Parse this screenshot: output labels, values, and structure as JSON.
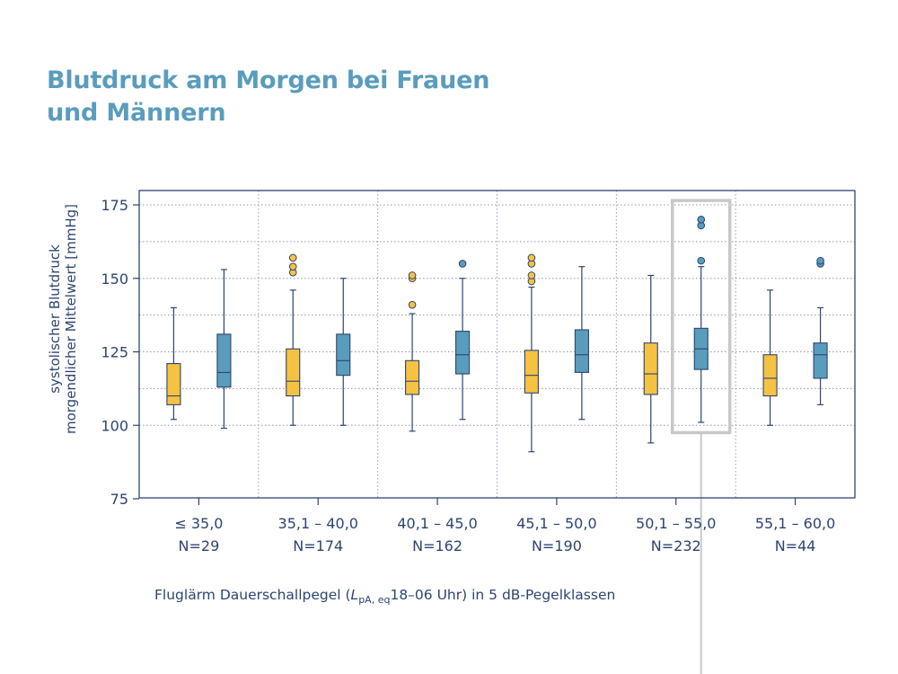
{
  "title": {
    "line1": "Blutdruck am Morgen bei Frauen",
    "line2": "und Männern"
  },
  "chart_data": {
    "type": "boxplot",
    "ylabel_line1": "systolischer Blutdruck",
    "ylabel_line2": "morgendlicher Mittelwert [mmHg]",
    "xlabel": {
      "before": "Fluglärm Dauerschallpegel (",
      "italic": "L",
      "sub": "pA, eq",
      "after": "18–06 Uhr) in 5 dB-Pegelklassen"
    },
    "ylim": [
      75,
      175
    ],
    "yticks": [
      75,
      100,
      125,
      150,
      175
    ],
    "grid": true,
    "colors": {
      "frauen": "#f5c242",
      "maenner": "#5a9cbc",
      "axis": "#2e4470",
      "highlight": "#c8c8c8"
    },
    "categories": [
      {
        "label": "≤ 35,0",
        "n": "N=29"
      },
      {
        "label": "35,1 – 40,0",
        "n": "N=174"
      },
      {
        "label": "40,1 – 45,0",
        "n": "N=162"
      },
      {
        "label": "45,1 – 50,0",
        "n": "N=190"
      },
      {
        "label": "50,1 – 55,0",
        "n": "N=232"
      },
      {
        "label": "55,1 – 60,0",
        "n": "N=44"
      }
    ],
    "highlight_category": 4,
    "series": [
      {
        "colorKey": "frauen",
        "boxes": [
          {
            "min": 102,
            "q1": 107,
            "median": 110,
            "q3": 121,
            "max": 140,
            "outliers": []
          },
          {
            "min": 100,
            "q1": 110,
            "median": 115,
            "q3": 126,
            "max": 146,
            "outliers": [
              152,
              154,
              157
            ]
          },
          {
            "min": 98,
            "q1": 110.5,
            "median": 115,
            "q3": 122,
            "max": 138,
            "outliers": [
              141,
              150,
              151
            ]
          },
          {
            "min": 91,
            "q1": 111,
            "median": 117,
            "q3": 125.5,
            "max": 147,
            "outliers": [
              149,
              151,
              155,
              157
            ]
          },
          {
            "min": 94,
            "q1": 110.5,
            "median": 117.5,
            "q3": 128,
            "max": 151,
            "outliers": []
          },
          {
            "min": 100,
            "q1": 110,
            "median": 116,
            "q3": 124,
            "max": 146,
            "outliers": []
          }
        ]
      },
      {
        "colorKey": "maenner",
        "boxes": [
          {
            "min": 99,
            "q1": 113,
            "median": 118,
            "q3": 131,
            "max": 153,
            "outliers": []
          },
          {
            "min": 100,
            "q1": 117,
            "median": 122,
            "q3": 131,
            "max": 150,
            "outliers": []
          },
          {
            "min": 102,
            "q1": 117.5,
            "median": 124,
            "q3": 132,
            "max": 150,
            "outliers": [
              155
            ]
          },
          {
            "min": 102,
            "q1": 118,
            "median": 124,
            "q3": 132.5,
            "max": 154,
            "outliers": []
          },
          {
            "min": 101,
            "q1": 119,
            "median": 126,
            "q3": 133,
            "max": 154,
            "outliers": [
              156,
              168,
              170
            ]
          },
          {
            "min": 107,
            "q1": 116,
            "median": 124,
            "q3": 128,
            "max": 140,
            "outliers": [
              155,
              156
            ]
          }
        ]
      }
    ]
  }
}
